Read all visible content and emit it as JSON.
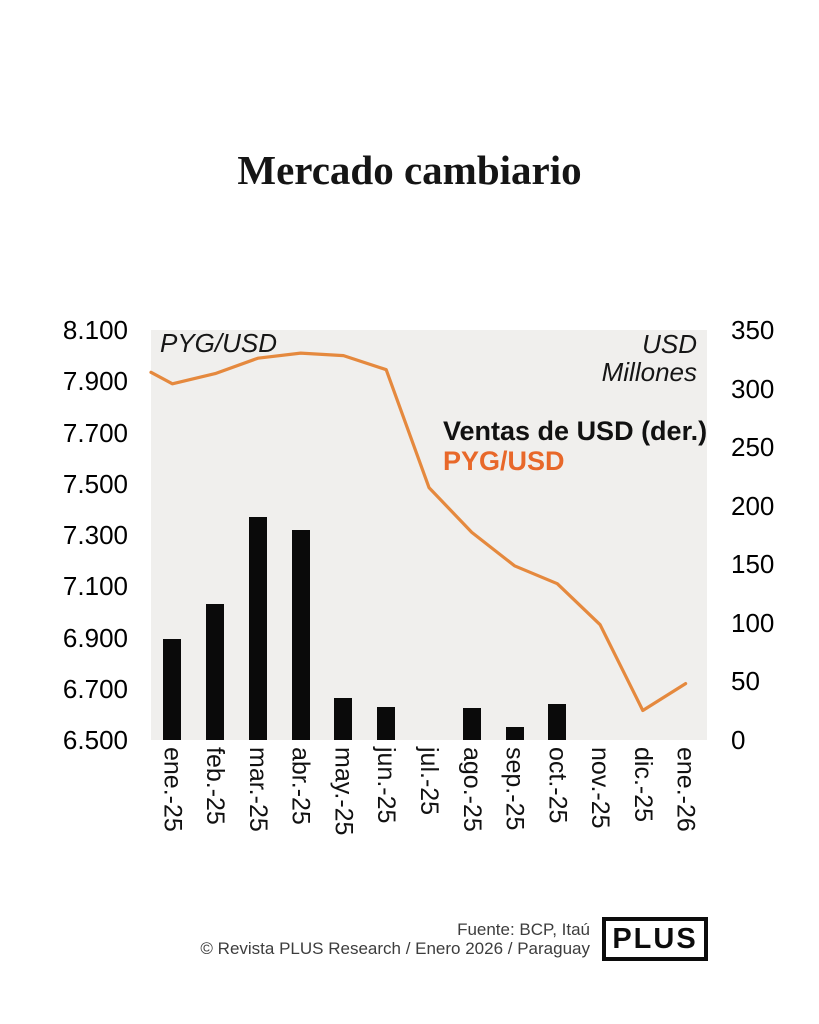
{
  "title": "Mercado cambiario",
  "chart_data": {
    "type": "bar+line combo",
    "categories": [
      "ene.-25",
      "feb.-25",
      "mar.-25",
      "abr.-25",
      "may.-25",
      "jun.-25",
      "jul.-25",
      "ago.-25",
      "sep.-25",
      "oct.-25",
      "nov.-25",
      "dic.-25",
      "ene.-26"
    ],
    "series": [
      {
        "name": "Ventas de USD (der.)",
        "type": "bar",
        "axis": "right",
        "color": "#0a0a0a",
        "values": [
          86,
          116,
          190,
          179,
          36,
          28,
          0,
          27,
          11,
          31,
          0,
          0,
          0
        ]
      },
      {
        "name": "PYG/USD",
        "type": "line",
        "axis": "left",
        "color": "#E5893E",
        "label_color": "#E8682A",
        "edge_start_value": 7935,
        "values": [
          7890,
          7930,
          7990,
          8010,
          8000,
          7945,
          7485,
          7310,
          7180,
          7110,
          6950,
          6615,
          6720
        ]
      }
    ],
    "left_axis": {
      "label": "PYG/USD",
      "min": 6500,
      "max": 8100,
      "ticks": [
        "8.100",
        "7.900",
        "7.700",
        "7.500",
        "7.300",
        "7.100",
        "6.900",
        "6.700",
        "6.500"
      ]
    },
    "right_axis": {
      "label_lines": [
        "USD",
        "Millones"
      ],
      "min": 0,
      "max": 350,
      "ticks": [
        "350",
        "300",
        "250",
        "200",
        "150",
        "100",
        "50",
        "0"
      ]
    },
    "grid": "off",
    "legend_position": "inside-top-right",
    "plot_background": "#f0efed"
  },
  "footer": {
    "source": "Fuente: BCP, Itaú",
    "credit": "© Revista PLUS Research / Enero 2026 / Paraguay",
    "logo_text": "PLUS"
  }
}
